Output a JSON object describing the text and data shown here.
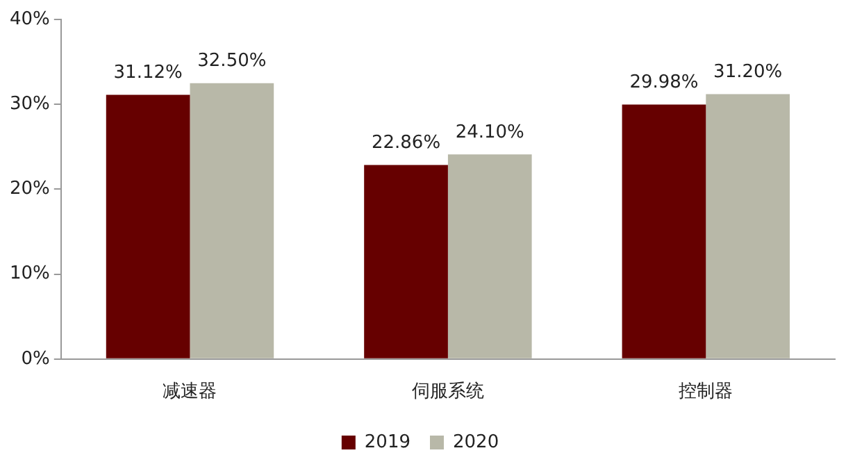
{
  "chart_data": {
    "type": "bar",
    "categories": [
      "减速器",
      "伺服系统",
      "控制器"
    ],
    "series": [
      {
        "name": "2019",
        "color": "#660000",
        "values": [
          31.12,
          22.86,
          29.98
        ],
        "value_labels": [
          "31.12%",
          "22.86%",
          "29.98%"
        ]
      },
      {
        "name": "2020",
        "color": "#b8b8a8",
        "values": [
          32.5,
          24.1,
          31.2
        ],
        "value_labels": [
          "32.50%",
          "24.10%",
          "31.20%"
        ]
      }
    ],
    "ylim": [
      0,
      40
    ],
    "yticks": [
      {
        "value": 0,
        "label": "0%"
      },
      {
        "value": 10,
        "label": "10%"
      },
      {
        "value": 20,
        "label": "20%"
      },
      {
        "value": 30,
        "label": "30%"
      },
      {
        "value": 40,
        "label": "40%"
      }
    ],
    "grid": false,
    "legend": "bottom"
  }
}
